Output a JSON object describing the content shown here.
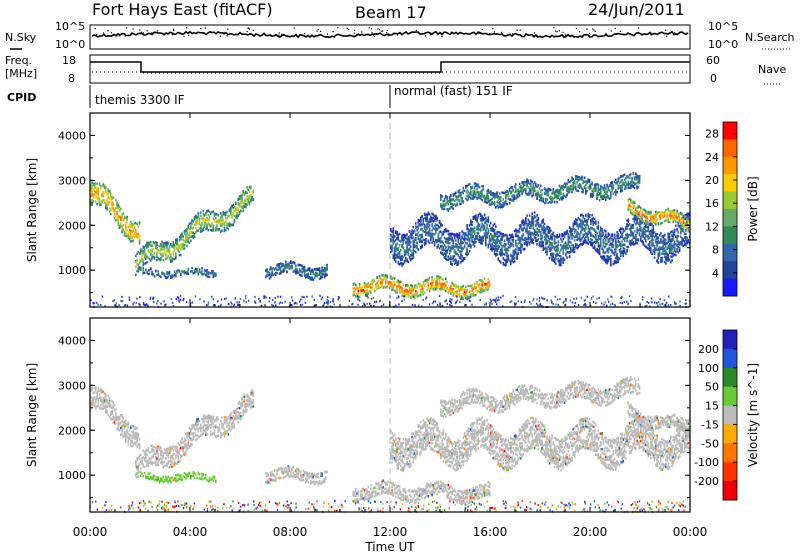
{
  "header": {
    "station": "Fort Hays East (fitACF)",
    "beam": "Beam 17",
    "date": "24/Jun/2011"
  },
  "top_panel": {
    "left_labels": {
      "nsky": "N.Sky",
      "freq1": "Freq.",
      "freq2": "[MHz]",
      "cpid": "CPID"
    },
    "right_labels": {
      "nsearch": "N.Search",
      "nave": "Nave"
    },
    "left_ticks": {
      "noise_hi": "10^5",
      "noise_lo": "10^0",
      "freq_hi": "18",
      "freq_lo": "8"
    },
    "right_ticks": {
      "noise_hi": "10^5",
      "noise_lo": "10^0",
      "nave_hi": "60",
      "nave_lo": "0"
    },
    "cpid_segments": [
      "themis 3300 IF",
      "normal (fast) 151 IF"
    ]
  },
  "colors": {
    "power_scale": [
      "#1a1aff",
      "#224499",
      "#3366aa",
      "#2e8b57",
      "#66aa66",
      "#99cc33",
      "#ffcc00",
      "#ff9900",
      "#ff6600",
      "#ff0000"
    ],
    "velocity_scale": [
      "#2222bb",
      "#2255dd",
      "#2a8a2a",
      "#66cc33",
      "#bbbbbb",
      "#ffaa00",
      "#ff7700",
      "#ff3300",
      "#ee0000"
    ]
  },
  "chart_data": [
    {
      "type": "heatmap",
      "title": "",
      "xlabel": "Time UT",
      "ylabel": "Slant Range [km]",
      "x_ticks": [
        "00:00",
        "04:00",
        "08:00",
        "12:00",
        "16:00",
        "20:00",
        "00:00"
      ],
      "y_ticks": [
        "1000",
        "2000",
        "3000",
        "4000"
      ],
      "xlim": [
        0,
        24
      ],
      "ylim": [
        180,
        4500
      ],
      "colorbar": {
        "label": "Power [dB]",
        "ticks": [
          "4",
          "8",
          "12",
          "16",
          "20",
          "24",
          "28"
        ],
        "range": [
          0,
          30
        ]
      },
      "echo_regions": [
        {
          "t_start": 0.0,
          "t_end": 2.0,
          "range_center_start": 2700,
          "range_center_end": 1900,
          "width": 500,
          "power_db": 25
        },
        {
          "t_start": 1.8,
          "t_end": 6.5,
          "range_center_start": 1100,
          "range_center_end": 2600,
          "width": 450,
          "power_db": 18
        },
        {
          "t_start": 2.0,
          "t_end": 5.0,
          "range_center_start": 950,
          "range_center_end": 950,
          "width": 150,
          "power_db": 10
        },
        {
          "t_start": 7.0,
          "t_end": 9.5,
          "range_center_start": 1000,
          "range_center_end": 1000,
          "width": 250,
          "power_db": 10
        },
        {
          "t_start": 10.5,
          "t_end": 16.0,
          "range_center_start": 650,
          "range_center_end": 600,
          "width": 300,
          "power_db": 27
        },
        {
          "t_start": 12.0,
          "t_end": 24.0,
          "range_center_start": 1700,
          "range_center_end": 1700,
          "width": 700,
          "power_db": 9
        },
        {
          "t_start": 14.0,
          "t_end": 22.0,
          "range_center_start": 2600,
          "range_center_end": 2900,
          "width": 350,
          "power_db": 12
        },
        {
          "t_start": 21.5,
          "t_end": 24.0,
          "range_center_start": 2400,
          "range_center_end": 2000,
          "width": 300,
          "power_db": 26
        }
      ]
    },
    {
      "type": "heatmap",
      "title": "",
      "xlabel": "Time UT",
      "ylabel": "Slant Range [km]",
      "x_ticks": [
        "00:00",
        "04:00",
        "08:00",
        "12:00",
        "16:00",
        "20:00",
        "00:00"
      ],
      "y_ticks": [
        "1000",
        "2000",
        "3000",
        "4000"
      ],
      "xlim": [
        0,
        24
      ],
      "ylim": [
        180,
        4500
      ],
      "colorbar": {
        "label": "Velocity [m s^-1]",
        "ticks": [
          "200",
          "100",
          "50",
          "15",
          "-15",
          "-50",
          "-100",
          "-200"
        ],
        "range": [
          -250,
          250
        ]
      },
      "echo_regions": [
        {
          "t_start": 0.0,
          "t_end": 2.0,
          "range_center_start": 2700,
          "range_center_end": 1900,
          "width": 500,
          "velocity": 0
        },
        {
          "t_start": 1.8,
          "t_end": 6.5,
          "range_center_start": 1100,
          "range_center_end": 2600,
          "width": 450,
          "velocity": 0
        },
        {
          "t_start": 2.0,
          "t_end": 5.0,
          "range_center_start": 950,
          "range_center_end": 950,
          "width": 150,
          "velocity": 60
        },
        {
          "t_start": 7.0,
          "t_end": 9.5,
          "range_center_start": 1000,
          "range_center_end": 1000,
          "width": 250,
          "velocity": 0
        },
        {
          "t_start": 10.5,
          "t_end": 16.0,
          "range_center_start": 650,
          "range_center_end": 600,
          "width": 300,
          "velocity": 0
        },
        {
          "t_start": 12.0,
          "t_end": 24.0,
          "range_center_start": 1700,
          "range_center_end": 1700,
          "width": 700,
          "velocity": 0
        },
        {
          "t_start": 14.0,
          "t_end": 22.0,
          "range_center_start": 2600,
          "range_center_end": 2900,
          "width": 350,
          "velocity": 0
        },
        {
          "t_start": 21.5,
          "t_end": 24.0,
          "range_center_start": 2400,
          "range_center_end": 2000,
          "width": 300,
          "velocity": 0
        }
      ]
    }
  ]
}
